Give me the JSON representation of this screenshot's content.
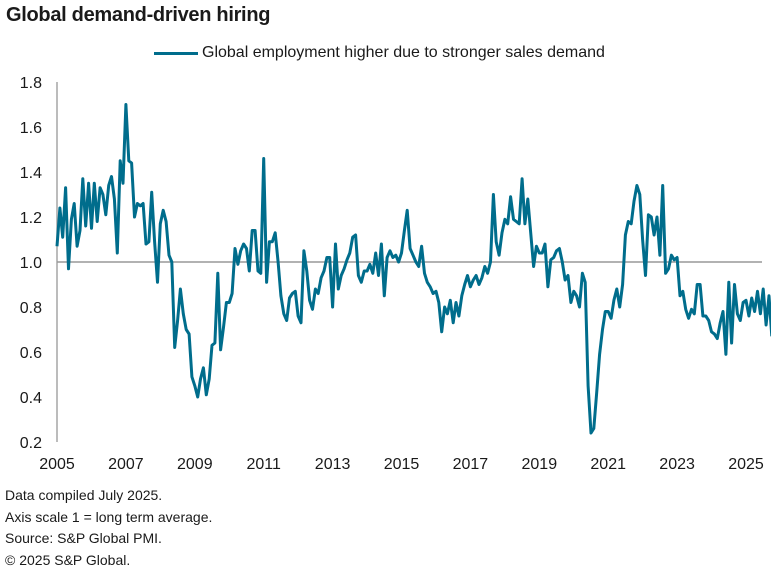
{
  "chart_data": {
    "type": "line",
    "title": "Global demand-driven hiring",
    "xlabel": "",
    "ylabel": "",
    "ylim": [
      0.2,
      1.8
    ],
    "xlim": [
      2005,
      2025.6
    ],
    "yticks": [
      "1.8",
      "1.6",
      "1.4",
      "1.2",
      "1.0",
      "0.8",
      "0.6",
      "0.4",
      "0.2"
    ],
    "ytick_values": [
      1.8,
      1.6,
      1.4,
      1.2,
      1.0,
      0.8,
      0.6,
      0.4,
      0.2
    ],
    "xticks": [
      "2005",
      "2007",
      "2009",
      "2011",
      "2013",
      "2015",
      "2017",
      "2019",
      "2021",
      "2023",
      "2025"
    ],
    "xtick_values": [
      2005,
      2007,
      2009,
      2011,
      2013,
      2015,
      2017,
      2019,
      2021,
      2023,
      2025
    ],
    "reference_line": 1.0,
    "grid": false,
    "legend_position": "top-center",
    "series": [
      {
        "name": "Global employment higher due to stronger sales demand",
        "color": "#006d8c",
        "start": "2005-01",
        "frequency": "monthly",
        "values": [
          1.07,
          1.24,
          1.11,
          1.33,
          0.97,
          1.19,
          1.26,
          1.07,
          1.14,
          1.37,
          1.16,
          1.35,
          1.15,
          1.35,
          1.18,
          1.33,
          1.3,
          1.21,
          1.34,
          1.38,
          1.28,
          1.04,
          1.45,
          1.35,
          1.7,
          1.45,
          1.44,
          1.2,
          1.26,
          1.25,
          1.26,
          1.08,
          1.09,
          1.31,
          1.09,
          0.91,
          1.17,
          1.23,
          1.18,
          1.03,
          1.0,
          0.62,
          0.74,
          0.88,
          0.77,
          0.7,
          0.68,
          0.49,
          0.45,
          0.4,
          0.48,
          0.53,
          0.41,
          0.48,
          0.63,
          0.64,
          0.95,
          0.61,
          0.71,
          0.82,
          0.82,
          0.86,
          1.06,
          0.99,
          1.05,
          1.08,
          1.06,
          0.96,
          1.14,
          1.14,
          0.96,
          0.95,
          1.46,
          0.91,
          1.09,
          1.09,
          1.13,
          1.0,
          0.85,
          0.77,
          0.74,
          0.84,
          0.86,
          0.87,
          0.76,
          0.73,
          1.05,
          0.96,
          0.83,
          0.79,
          0.88,
          0.86,
          0.93,
          0.96,
          1.02,
          1.02,
          0.8,
          1.08,
          0.88,
          0.94,
          0.97,
          1.01,
          1.04,
          1.11,
          1.12,
          0.94,
          0.91,
          0.96,
          0.96,
          0.99,
          0.95,
          1.04,
          0.94,
          1.08,
          0.85,
          1.02,
          1.05,
          1.02,
          1.03,
          1.0,
          1.04,
          1.14,
          1.23,
          1.06,
          1.03,
          1.0,
          0.98,
          1.07,
          0.95,
          0.91,
          0.89,
          0.86,
          0.87,
          0.82,
          0.69,
          0.8,
          0.77,
          0.83,
          0.73,
          0.82,
          0.76,
          0.85,
          0.9,
          0.94,
          0.89,
          0.92,
          0.94,
          0.9,
          0.93,
          0.98,
          0.95,
          1.0,
          1.3,
          1.09,
          1.03,
          1.13,
          1.19,
          1.17,
          1.29,
          1.19,
          1.18,
          1.17,
          1.37,
          1.17,
          1.28,
          1.13,
          0.98,
          1.07,
          1.04,
          1.04,
          1.08,
          0.89,
          1.01,
          1.02,
          1.05,
          1.06,
          1.0,
          0.92,
          0.94,
          0.82,
          0.87,
          0.85,
          0.8,
          0.95,
          0.91,
          0.45,
          0.24,
          0.26,
          0.42,
          0.59,
          0.7,
          0.78,
          0.78,
          0.75,
          0.83,
          0.88,
          0.8,
          0.9,
          1.12,
          1.18,
          1.17,
          1.27,
          1.34,
          1.3,
          1.1,
          0.94,
          1.21,
          1.2,
          1.12,
          1.2,
          1.03,
          1.34,
          0.95,
          0.97,
          1.03,
          1.01,
          1.02,
          0.85,
          0.87,
          0.79,
          0.75,
          0.79,
          0.77,
          0.9,
          0.9,
          0.76,
          0.76,
          0.74,
          0.69,
          0.68,
          0.66,
          0.73,
          0.78,
          0.59,
          0.91,
          0.64,
          0.9,
          0.77,
          0.74,
          0.82,
          0.83,
          0.76,
          0.84,
          0.78,
          0.87,
          0.77,
          0.88,
          0.72,
          0.85,
          0.67
        ]
      }
    ]
  },
  "footer": {
    "line1": "Data compiled July 2025.",
    "line2": "Axis scale 1 = long term average.",
    "line3": "Source: S&P Global PMI.",
    "line4": "© 2025 S&P Global."
  }
}
